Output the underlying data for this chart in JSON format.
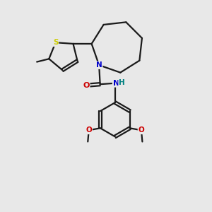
{
  "background_color": "#e8e8e8",
  "bond_color": "#1a1a1a",
  "atom_colors": {
    "N": "#0000cc",
    "O": "#cc0000",
    "S": "#cccc00",
    "NH": "#008080",
    "C": "#1a1a1a"
  },
  "figsize": [
    3.0,
    3.0
  ],
  "dpi": 100,
  "lw": 1.6
}
